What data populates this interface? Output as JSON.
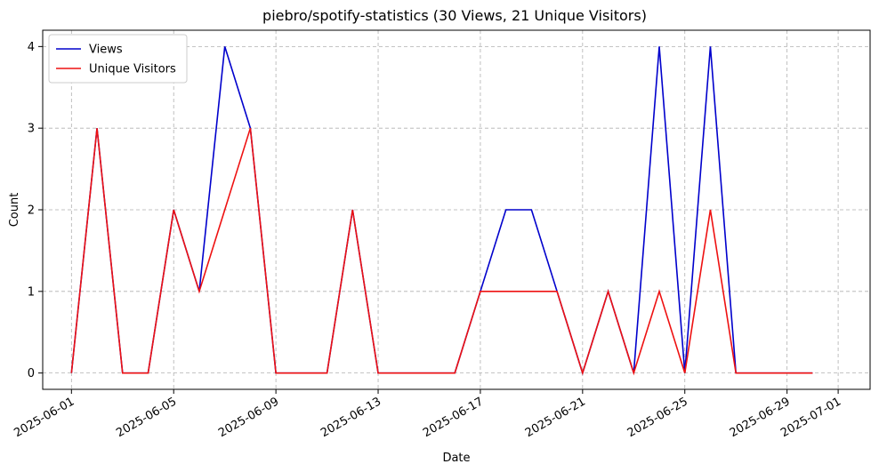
{
  "chart_data": {
    "type": "line",
    "title": "piebro/spotify-statistics (30 Views, 21 Unique Visitors)",
    "xlabel": "Date",
    "ylabel": "Count",
    "x_ticks": [
      "2025-06-01",
      "2025-06-05",
      "2025-06-09",
      "2025-06-13",
      "2025-06-17",
      "2025-06-21",
      "2025-06-25",
      "2025-06-29",
      "2025-07-01"
    ],
    "y_ticks": [
      0,
      1,
      2,
      3,
      4
    ],
    "xlim": [
      "2025-05-30T21:00",
      "2025-07-02T06:00"
    ],
    "ylim": [
      -0.2,
      4.2
    ],
    "grid": true,
    "legend_position": "top-left",
    "x": [
      "2025-06-01",
      "2025-06-02",
      "2025-06-03",
      "2025-06-04",
      "2025-06-05",
      "2025-06-06",
      "2025-06-07",
      "2025-06-08",
      "2025-06-09",
      "2025-06-10",
      "2025-06-11",
      "2025-06-12",
      "2025-06-13",
      "2025-06-14",
      "2025-06-15",
      "2025-06-16",
      "2025-06-17",
      "2025-06-18",
      "2025-06-19",
      "2025-06-20",
      "2025-06-21",
      "2025-06-22",
      "2025-06-23",
      "2025-06-24",
      "2025-06-25",
      "2025-06-26",
      "2025-06-27",
      "2025-06-28",
      "2025-06-29",
      "2025-06-30"
    ],
    "series": [
      {
        "name": "Views",
        "color": "#0000cc",
        "values": [
          0,
          3,
          0,
          0,
          2,
          1,
          4,
          3,
          0,
          0,
          0,
          2,
          0,
          0,
          0,
          0,
          1,
          2,
          2,
          1,
          0,
          1,
          0,
          4,
          0,
          4,
          0,
          0,
          0,
          0
        ]
      },
      {
        "name": "Unique Visitors",
        "color": "#ee1111",
        "values": [
          0,
          3,
          0,
          0,
          2,
          1,
          2,
          3,
          0,
          0,
          0,
          2,
          0,
          0,
          0,
          0,
          1,
          1,
          1,
          1,
          0,
          1,
          0,
          1,
          0,
          2,
          0,
          0,
          0,
          0
        ]
      }
    ]
  }
}
